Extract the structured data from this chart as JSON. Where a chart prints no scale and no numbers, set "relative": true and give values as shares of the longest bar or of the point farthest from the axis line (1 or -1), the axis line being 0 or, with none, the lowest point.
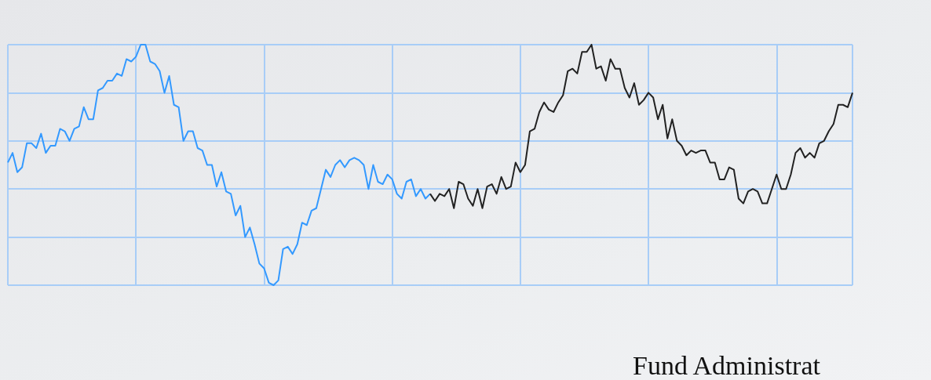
{
  "chart_data": {
    "type": "line",
    "relative": true,
    "grid": true,
    "line_style": "solid",
    "categories": [
      null,
      null,
      null,
      null,
      null,
      null,
      null,
      null,
      null,
      null,
      null,
      null,
      null,
      null,
      null,
      null,
      null,
      null,
      null,
      null,
      null,
      null,
      null,
      null,
      null,
      null,
      null,
      null,
      null,
      null,
      null,
      null,
      null,
      null,
      null,
      null,
      null,
      null,
      null,
      null,
      null,
      null,
      null,
      null,
      null,
      null,
      null,
      null,
      null,
      null,
      null,
      null,
      null,
      null,
      null,
      null,
      null,
      null,
      null,
      null,
      null,
      null,
      null,
      null,
      null,
      null,
      null,
      null,
      null,
      null,
      null,
      null,
      null,
      null,
      null,
      null,
      null,
      null,
      null,
      null,
      null,
      null,
      null,
      null,
      null,
      null,
      null,
      null,
      null,
      null,
      null,
      null,
      null,
      null,
      null,
      null,
      null,
      null,
      null,
      null,
      null,
      null,
      null,
      null,
      null,
      null,
      null,
      null,
      null,
      null,
      null,
      null,
      null,
      null,
      null,
      null,
      null,
      null,
      null,
      null,
      null,
      null,
      null,
      null,
      null,
      null,
      null,
      null,
      null,
      null,
      null,
      null,
      null,
      null,
      null,
      null,
      null,
      null,
      null,
      null,
      null,
      null,
      null,
      null,
      null,
      null,
      null,
      null,
      null,
      null,
      null,
      null,
      null,
      null,
      null,
      null,
      null,
      null,
      null,
      null,
      null,
      null,
      null,
      null,
      null,
      null,
      null,
      null,
      null,
      null,
      null,
      null,
      null,
      null,
      null,
      null,
      null,
      null,
      null
    ],
    "series": [
      {
        "color": "#3399ff",
        "values": [
          0.51,
          0.55,
          0.47,
          0.49,
          0.59,
          0.59,
          0.57,
          0.63,
          0.55,
          0.58,
          0.58,
          0.65,
          0.64,
          0.6,
          0.65,
          0.66,
          0.74,
          0.69,
          0.69,
          0.81,
          0.82,
          0.85,
          0.85,
          0.88,
          0.87,
          0.94,
          0.93,
          0.95,
          1,
          1,
          0.93,
          0.92,
          0.89,
          0.8,
          0.87,
          0.75,
          0.74,
          0.6,
          0.64,
          0.64,
          0.57,
          0.56,
          0.5,
          0.5,
          0.41,
          0.47,
          0.39,
          0.38,
          0.29,
          0.33,
          0.2,
          0.24,
          0.17,
          0.09,
          0.07,
          0.01,
          0,
          0.02,
          0.15,
          0.16,
          0.13,
          0.17,
          0.26,
          0.25,
          0.31,
          0.32,
          0.4,
          0.48,
          0.45,
          0.5,
          0.52,
          0.49,
          0.52,
          0.53,
          0.52,
          0.5,
          0.4,
          0.5,
          0.43,
          0.42,
          0.46,
          0.44,
          0.38,
          0.36,
          0.43,
          0.44,
          0.37,
          0.4,
          0.36,
          0.38,
          null,
          null,
          null,
          null,
          null,
          null,
          null,
          null,
          null,
          null,
          null,
          null,
          null,
          null,
          null,
          null,
          null,
          null,
          null,
          null,
          null,
          null,
          null,
          null,
          null,
          null,
          null,
          null,
          null,
          null,
          null,
          null,
          null,
          null,
          null,
          null,
          null,
          null,
          null,
          null,
          null,
          null,
          null,
          null,
          null,
          null,
          null,
          null,
          null,
          null,
          null,
          null,
          null,
          null,
          null,
          null,
          null,
          null,
          null,
          null,
          null,
          null,
          null,
          null,
          null,
          null,
          null,
          null,
          null,
          null,
          null,
          null,
          null,
          null,
          null,
          null,
          null,
          null,
          null,
          null,
          null,
          null,
          null,
          null,
          null,
          null,
          null,
          null,
          null
        ]
      },
      {
        "color": "#222222",
        "values": [
          null,
          null,
          null,
          null,
          null,
          null,
          null,
          null,
          null,
          null,
          null,
          null,
          null,
          null,
          null,
          null,
          null,
          null,
          null,
          null,
          null,
          null,
          null,
          null,
          null,
          null,
          null,
          null,
          null,
          null,
          null,
          null,
          null,
          null,
          null,
          null,
          null,
          null,
          null,
          null,
          null,
          null,
          null,
          null,
          null,
          null,
          null,
          null,
          null,
          null,
          null,
          null,
          null,
          null,
          null,
          null,
          null,
          null,
          null,
          null,
          null,
          null,
          null,
          null,
          null,
          null,
          null,
          null,
          null,
          null,
          null,
          null,
          null,
          null,
          null,
          null,
          null,
          null,
          null,
          null,
          null,
          null,
          null,
          null,
          null,
          null,
          null,
          null,
          null,
          0.38,
          0.35,
          0.38,
          0.37,
          0.4,
          0.32,
          0.43,
          0.42,
          0.36,
          0.33,
          0.4,
          0.32,
          0.41,
          0.42,
          0.38,
          0.45,
          0.4,
          0.41,
          0.51,
          0.47,
          0.5,
          0.64,
          0.65,
          0.72,
          0.76,
          0.73,
          0.72,
          0.76,
          0.79,
          0.89,
          0.9,
          0.88,
          0.97,
          0.97,
          1,
          0.9,
          0.91,
          0.85,
          0.94,
          0.9,
          0.9,
          0.82,
          0.78,
          0.84,
          0.75,
          0.77,
          0.8,
          0.78,
          0.69,
          0.75,
          0.61,
          0.69,
          0.6,
          0.58,
          0.54,
          0.56,
          0.55,
          0.56,
          0.56,
          0.51,
          0.51,
          0.44,
          0.44,
          0.49,
          0.48,
          0.36,
          0.34,
          0.39,
          0.4,
          0.39,
          0.34,
          0.34,
          0.4,
          0.46,
          0.4,
          0.4,
          0.46,
          0.55,
          0.57,
          0.53,
          0.55,
          0.53,
          0.59,
          0.6,
          0.64,
          0.67,
          0.75,
          0.75,
          0.74,
          0.8
        ]
      }
    ],
    "annotations": [
      "Fund Administrat"
    ]
  }
}
